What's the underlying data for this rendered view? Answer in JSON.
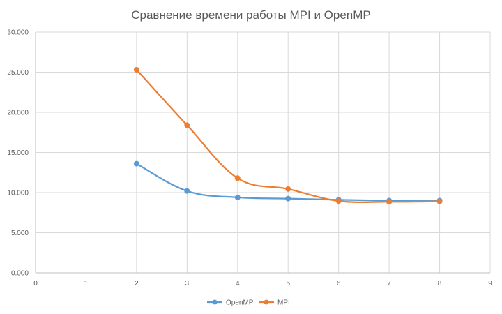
{
  "chart_data": {
    "type": "line",
    "title": "Сравнение времени работы MPI и  OpenMP",
    "xlabel": "",
    "ylabel": "",
    "xlim": [
      0,
      9
    ],
    "ylim": [
      0,
      30
    ],
    "x_ticks": [
      "0",
      "1",
      "2",
      "3",
      "4",
      "5",
      "6",
      "7",
      "8",
      "9"
    ],
    "y_ticks": [
      "0.000",
      "5.000",
      "10.000",
      "15.000",
      "20.000",
      "25.000",
      "30.000"
    ],
    "grid": true,
    "legend_position": "bottom",
    "smooth": true,
    "series": [
      {
        "name": "OpenMP",
        "color": "#5b9bd5",
        "x": [
          2,
          3,
          4,
          5,
          6,
          7,
          8
        ],
        "y": [
          13.6,
          10.2,
          9.4,
          9.25,
          9.1,
          9.0,
          9.0
        ]
      },
      {
        "name": "MPI",
        "color": "#ed7d31",
        "x": [
          2,
          3,
          4,
          5,
          6,
          7,
          8
        ],
        "y": [
          25.3,
          18.4,
          11.8,
          10.45,
          8.95,
          8.85,
          8.9
        ]
      }
    ]
  }
}
